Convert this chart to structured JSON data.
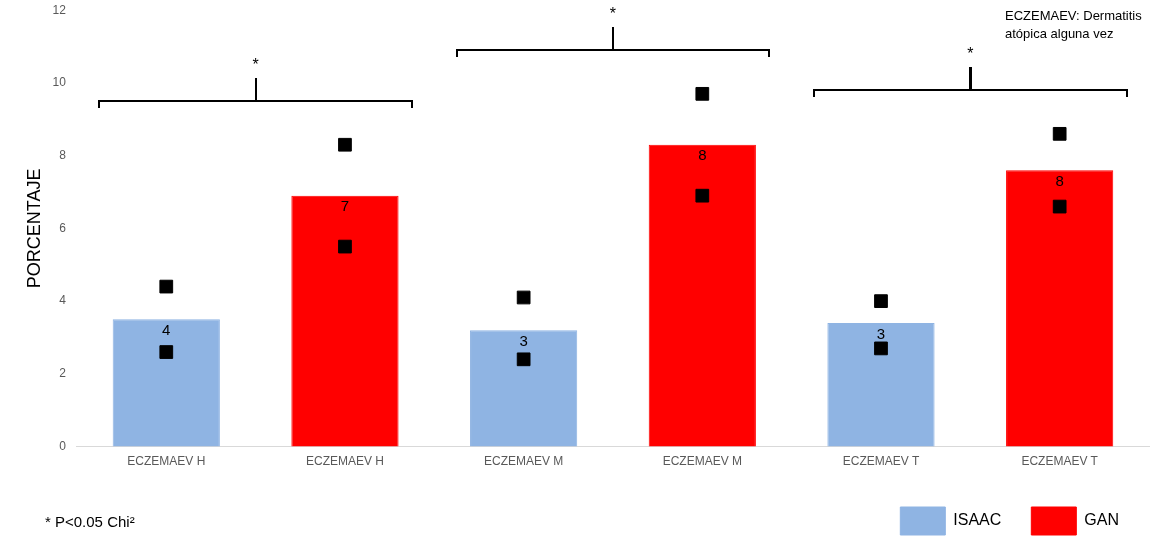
{
  "chart_data": {
    "type": "bar",
    "ylabel": "PORCENTAJE",
    "categories": [
      "ECZEMAEV H",
      "ECZEMAEV H",
      "ECZEMAEV M",
      "ECZEMAEV M",
      "ECZEMAEV T",
      "ECZEMAEV T"
    ],
    "series": [
      {
        "name": "ISAAC",
        "color": "#8fb4e3",
        "values": [
          3.5,
          null,
          3.2,
          null,
          3.4,
          null
        ],
        "value_labels": [
          "4",
          null,
          "3",
          null,
          "3",
          null
        ]
      },
      {
        "name": "GAN",
        "color": "#ff0000",
        "values": [
          null,
          6.9,
          null,
          8.3,
          null,
          7.6
        ],
        "value_labels": [
          null,
          "7",
          null,
          "8",
          null,
          "8"
        ]
      },
      {
        "type": "scatter",
        "color": "#000000",
        "marker": "square",
        "values": [
          2.6,
          5.5,
          2.4,
          6.9,
          2.7,
          6.6
        ]
      },
      {
        "type": "scatter",
        "color": "#000000",
        "marker": "square",
        "values": [
          4.4,
          8.3,
          4.1,
          9.7,
          4.0,
          8.6
        ]
      }
    ],
    "ylim": [
      0,
      12
    ],
    "yticks": [
      0,
      2,
      4,
      6,
      8,
      10,
      12
    ],
    "grid": false,
    "legend": "bottom right",
    "annotations": [
      "*",
      "*",
      "*",
      "ECZEMAEV: Dermatitis atópica alguna vez",
      "* P<0.05 Chi²"
    ]
  }
}
